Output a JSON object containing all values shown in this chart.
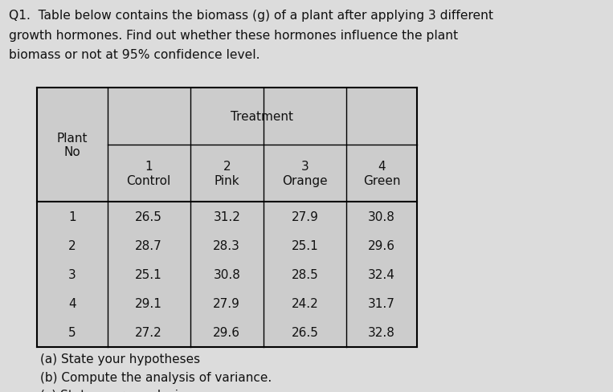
{
  "title_line1": "Q1.  Table below contains the biomass (g) of a plant after applying 3 different",
  "title_line2": "growth hormones. Find out whether these hormones influence the plant",
  "title_line3": "biomass or not at 95% confidence level.",
  "col_header_top": "Treatment",
  "col_header_nums": [
    "1",
    "2",
    "3",
    "4"
  ],
  "col_header_names": [
    "Control",
    "Pink",
    "Orange",
    "Green"
  ],
  "plant_nos": [
    "1",
    "2",
    "3",
    "4",
    "5"
  ],
  "data": [
    [
      "26.5",
      "31.2",
      "27.9",
      "30.8"
    ],
    [
      "28.7",
      "28.3",
      "25.1",
      "29.6"
    ],
    [
      "25.1",
      "30.8",
      "28.5",
      "32.4"
    ],
    [
      "29.1",
      "27.9",
      "24.2",
      "31.7"
    ],
    [
      "27.2",
      "29.6",
      "26.5",
      "32.8"
    ]
  ],
  "footer_lines": [
    "(a) State your hypotheses",
    "(b) Compute the analysis of variance.",
    "(c) State your conclusion."
  ],
  "bg_color": "#dcdcdc",
  "table_bg": "#cccccc",
  "text_color": "#111111",
  "font_size_title": 11.2,
  "font_size_table": 11.0,
  "font_size_footer": 11.0
}
